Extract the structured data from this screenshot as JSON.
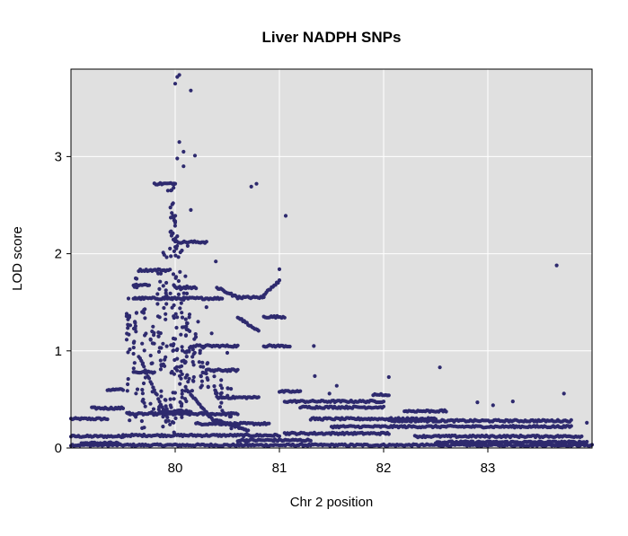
{
  "chart_data": {
    "type": "scatter",
    "title": "Liver NADPH SNPs",
    "xlabel": "Chr 2 position",
    "ylabel": "LOD score",
    "xlim": [
      79.0,
      84.0
    ],
    "ylim": [
      0,
      3.9
    ],
    "x_ticks": [
      80,
      81,
      82,
      83
    ],
    "y_ticks": [
      0,
      1,
      2,
      3
    ],
    "grid": true,
    "colors": {
      "points": "#2e2a6e",
      "panel": "#e0e0e0",
      "grid": "#ffffff",
      "border": "#000000"
    },
    "series": [
      {
        "bands": [
          [
            79.0,
            79.35,
            0.3
          ],
          [
            79.0,
            79.5,
            0.12
          ],
          [
            79.0,
            84.0,
            0.03
          ],
          [
            79.1,
            79.45,
            0.05
          ],
          [
            79.2,
            79.5,
            0.41
          ],
          [
            79.35,
            79.5,
            0.6
          ],
          [
            79.5,
            81.0,
            0.13
          ],
          [
            79.55,
            80.6,
            0.35
          ],
          [
            79.6,
            80.45,
            1.54
          ],
          [
            79.6,
            79.75,
            1.68
          ],
          [
            79.6,
            79.8,
            0.78
          ],
          [
            79.65,
            79.95,
            1.83
          ],
          [
            79.8,
            80.0,
            2.72
          ],
          [
            79.85,
            80.15,
            0.38
          ],
          [
            80.0,
            80.3,
            2.12
          ],
          [
            80.0,
            80.2,
            1.65
          ],
          [
            80.15,
            80.6,
            1.05
          ],
          [
            80.2,
            80.9,
            0.25
          ],
          [
            80.3,
            80.6,
            0.8
          ],
          [
            80.4,
            80.8,
            0.52
          ],
          [
            80.6,
            81.3,
            0.08
          ],
          [
            80.6,
            80.85,
            1.55
          ],
          [
            80.85,
            81.05,
            1.35
          ],
          [
            80.85,
            81.1,
            1.05
          ],
          [
            81.0,
            81.2,
            0.58
          ],
          [
            81.05,
            82.0,
            0.48
          ],
          [
            81.05,
            82.05,
            0.15
          ],
          [
            81.2,
            82.0,
            0.42
          ],
          [
            81.3,
            82.5,
            0.3
          ],
          [
            81.5,
            83.8,
            0.22
          ],
          [
            81.9,
            82.05,
            0.55
          ],
          [
            82.05,
            83.8,
            0.28
          ],
          [
            82.3,
            83.9,
            0.12
          ],
          [
            82.5,
            83.95,
            0.06
          ],
          [
            82.2,
            82.6,
            0.38
          ]
        ],
        "ramps": [
          [
            80.4,
            80.6,
            1.65,
            1.55
          ],
          [
            80.85,
            81.0,
            1.58,
            1.72
          ],
          [
            80.1,
            80.35,
            0.62,
            0.3
          ],
          [
            80.35,
            80.7,
            0.3,
            0.18
          ],
          [
            79.65,
            79.95,
            0.95,
            0.25
          ],
          [
            80.6,
            80.8,
            1.35,
            1.2
          ]
        ],
        "columns": [
          [
            79.55,
            0.25,
            1.55
          ],
          [
            79.62,
            0.3,
            1.75
          ],
          [
            79.7,
            0.2,
            1.45
          ],
          [
            79.78,
            0.25,
            1.25
          ],
          [
            79.85,
            0.35,
            1.9
          ],
          [
            79.9,
            0.2,
            2.05
          ],
          [
            79.97,
            0.15,
            2.75
          ],
          [
            80.0,
            0.3,
            2.4
          ],
          [
            80.05,
            0.2,
            2.25
          ],
          [
            80.1,
            0.35,
            1.8
          ],
          [
            80.12,
            0.6,
            1.4
          ],
          [
            80.18,
            0.5,
            1.2
          ],
          [
            80.25,
            0.35,
            1.1
          ],
          [
            80.3,
            0.6,
            0.95
          ],
          [
            80.38,
            0.55,
            0.8
          ],
          [
            80.45,
            0.3,
            0.75
          ],
          [
            80.52,
            0.2,
            0.65
          ]
        ],
        "points": [
          [
            80.02,
            3.82
          ],
          [
            80.04,
            3.84
          ],
          [
            80.0,
            3.75
          ],
          [
            80.15,
            3.68
          ],
          [
            80.04,
            3.15
          ],
          [
            80.08,
            3.05
          ],
          [
            80.19,
            3.01
          ],
          [
            80.02,
            2.98
          ],
          [
            80.08,
            2.9
          ],
          [
            80.15,
            2.45
          ],
          [
            80.73,
            2.69
          ],
          [
            80.78,
            2.72
          ],
          [
            81.06,
            2.39
          ],
          [
            80.39,
            1.92
          ],
          [
            81.0,
            1.84
          ],
          [
            83.66,
            1.88
          ],
          [
            81.33,
            1.05
          ],
          [
            81.34,
            0.74
          ],
          [
            82.05,
            0.73
          ],
          [
            82.54,
            0.83
          ],
          [
            83.73,
            0.56
          ],
          [
            83.24,
            0.48
          ],
          [
            83.05,
            0.44
          ],
          [
            81.48,
            0.56
          ],
          [
            81.55,
            0.64
          ],
          [
            82.9,
            0.47
          ],
          [
            83.95,
            0.26
          ],
          [
            80.0,
            2.32
          ],
          [
            80.02,
            2.18
          ],
          [
            79.98,
            2.52
          ],
          [
            79.93,
            2.65
          ],
          [
            80.12,
            2.08
          ],
          [
            80.3,
            1.45
          ],
          [
            80.22,
            1.3
          ],
          [
            80.35,
            1.18
          ],
          [
            80.5,
            0.98
          ]
        ]
      }
    ]
  }
}
